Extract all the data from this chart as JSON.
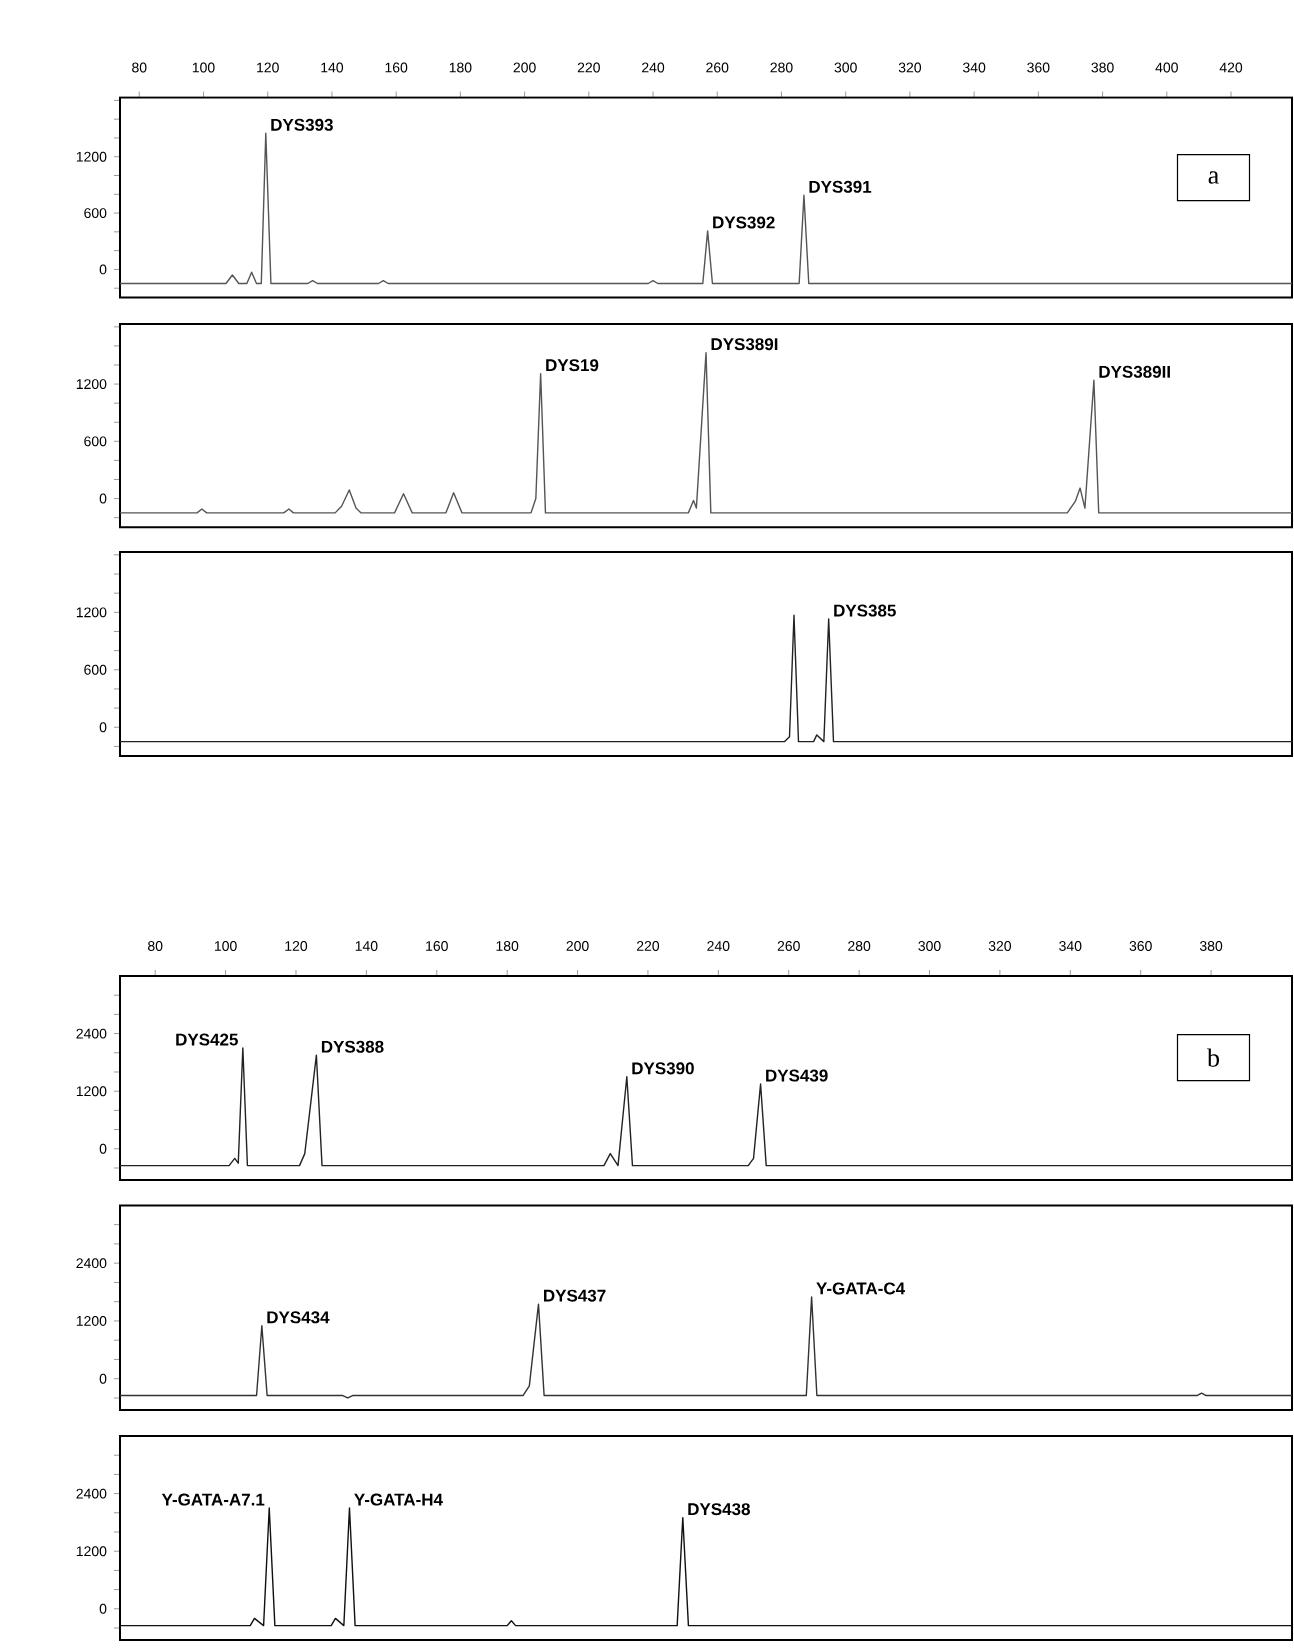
{
  "chart_data": [
    {
      "type": "line",
      "xlim": [
        74,
        439
      ],
      "ylim": [
        -300,
        1830
      ],
      "xticks": [
        80,
        100,
        120,
        140,
        160,
        180,
        200,
        220,
        240,
        260,
        280,
        300,
        320,
        340,
        360,
        380,
        400,
        420
      ],
      "yticks": [
        {
          "value": -200,
          "label": null
        },
        0,
        {
          "value": 200,
          "label": null
        },
        {
          "value": 400,
          "label": null
        },
        600,
        {
          "value": 800,
          "label": null
        },
        {
          "value": 1000,
          "label": null
        },
        1200,
        {
          "value": 1400,
          "label": null
        },
        {
          "value": 1600,
          "label": null
        },
        {
          "value": 1800,
          "label": null
        }
      ],
      "series": [
        {
          "color": "#555555",
          "x": [
            74,
            107,
            109,
            111,
            113.5,
            115,
            116.5,
            118,
            119.4,
            121,
            132.5,
            134,
            135.5,
            154.5,
            156,
            157.5,
            238.5,
            240,
            241.5,
            255.5,
            257,
            258.5,
            285.5,
            287,
            288.5,
            439
          ],
          "values": [
            -150,
            -150,
            -60,
            -150,
            -150,
            -30,
            -150,
            -150,
            1450,
            -150,
            -150,
            -120,
            -150,
            -150,
            -120,
            -150,
            -150,
            -120,
            -150,
            -150,
            410,
            -150,
            -150,
            790,
            -150,
            -150
          ]
        }
      ],
      "annotations": [
        {
          "text": "DYS393",
          "x": 119.4,
          "y": 1450
        },
        {
          "text": "DYS392",
          "x": 257,
          "y": 410
        },
        {
          "text": "DYS391",
          "x": 287,
          "y": 790
        },
        "a"
      ]
    },
    {
      "type": "line",
      "xlim": [
        74,
        439
      ],
      "ylim": [
        -300,
        1830
      ],
      "tick_labels": "y",
      "yticks": [
        {
          "value": -200,
          "label": null
        },
        0,
        {
          "value": 200,
          "label": null
        },
        {
          "value": 400,
          "label": null
        },
        600,
        {
          "value": 800,
          "label": null
        },
        {
          "value": 1000,
          "label": null
        },
        1200,
        {
          "value": 1400,
          "label": null
        },
        {
          "value": 1600,
          "label": null
        },
        {
          "value": 1800,
          "label": null
        }
      ],
      "series": [
        {
          "color": "#555555",
          "x": [
            74,
            98,
            99.5,
            101,
            125,
            126.6,
            128,
            141,
            143,
            145.4,
            147.5,
            149,
            159.5,
            162.3,
            165,
            175.5,
            177.9,
            180.5,
            202,
            203.5,
            205,
            206.5,
            251,
            252.6,
            253.5,
            256.5,
            258,
            369,
            371.5,
            373,
            374.5,
            377.3,
            378.8,
            439
          ],
          "values": [
            -150,
            -150,
            -110,
            -150,
            -150,
            -110,
            -150,
            -150,
            -80,
            90,
            -100,
            -150,
            -150,
            50,
            -150,
            -150,
            60,
            -150,
            -150,
            0,
            1310,
            -150,
            -150,
            -20,
            -100,
            1530,
            -150,
            -150,
            -30,
            110,
            -100,
            1240,
            -150,
            -150
          ]
        }
      ],
      "annotations": [
        {
          "text": "DYS19",
          "x": 205,
          "y": 1310
        },
        {
          "text": "DYS389I",
          "x": 256.5,
          "y": 1530
        },
        {
          "text": "DYS389II",
          "x": 377.3,
          "y": 1240
        }
      ]
    },
    {
      "type": "line",
      "xlim": [
        74,
        439
      ],
      "ylim": [
        -300,
        1830
      ],
      "tick_labels": "y",
      "yticks": [
        {
          "value": -200,
          "label": null
        },
        0,
        {
          "value": 200,
          "label": null
        },
        {
          "value": 400,
          "label": null
        },
        600,
        {
          "value": 800,
          "label": null
        },
        {
          "value": 1000,
          "label": null
        },
        1200,
        {
          "value": 1400,
          "label": null
        },
        {
          "value": 1600,
          "label": null
        },
        {
          "value": 1800,
          "label": null
        }
      ],
      "series": [
        {
          "color": "#222222",
          "x": [
            74,
            281,
            282.5,
            283.9,
            285.3,
            290,
            291,
            293.2,
            294.7,
            296.2,
            439
          ],
          "values": [
            -150,
            -150,
            -100,
            1170,
            -150,
            -150,
            -80,
            -150,
            1130,
            -150,
            -150
          ]
        }
      ],
      "annotations": [
        {
          "text": "DYS385",
          "x": 294.7,
          "y": 1130
        }
      ]
    },
    {
      "type": "line",
      "xlim": [
        70,
        403
      ],
      "ylim": [
        -650,
        3600
      ],
      "xticks": [
        80,
        100,
        120,
        140,
        160,
        180,
        200,
        220,
        240,
        260,
        280,
        300,
        320,
        340,
        360,
        380
      ],
      "yticks": [
        {
          "value": -400,
          "label": null
        },
        0,
        {
          "value": 400,
          "label": null
        },
        {
          "value": 800,
          "label": null
        },
        1200,
        {
          "value": 1600,
          "label": null
        },
        {
          "value": 2000,
          "label": null
        },
        2400,
        {
          "value": 2800,
          "label": null
        },
        {
          "value": 3200,
          "label": null
        }
      ],
      "series": [
        {
          "color": "#222222",
          "x": [
            70,
            101,
            102.6,
            103.6,
            104.9,
            106.2,
            121,
            122.5,
            125.8,
            127.4,
            207.5,
            209.3,
            211.5,
            214.0,
            215.6,
            248.5,
            250,
            252.0,
            253.6,
            403
          ],
          "values": [
            -350,
            -350,
            -200,
            -300,
            2100,
            -350,
            -350,
            -100,
            1950,
            -350,
            -350,
            -100,
            -350,
            1500,
            -350,
            -350,
            -200,
            1350,
            -350,
            -350
          ]
        }
      ],
      "annotations": [
        {
          "text": "DYS425",
          "x": 104.9,
          "y": 2100
        },
        {
          "text": "DYS388",
          "x": 125.8,
          "y": 1950
        },
        {
          "text": "DYS390",
          "x": 214.0,
          "y": 1500
        },
        {
          "text": "DYS439",
          "x": 252.0,
          "y": 1350
        },
        "b"
      ]
    },
    {
      "type": "line",
      "xlim": [
        70,
        403
      ],
      "ylim": [
        -650,
        3600
      ],
      "tick_labels": "y",
      "yticks": [
        {
          "value": -400,
          "label": null
        },
        0,
        {
          "value": 400,
          "label": null
        },
        {
          "value": 800,
          "label": null
        },
        1200,
        {
          "value": 1600,
          "label": null
        },
        {
          "value": 2000,
          "label": null
        },
        2400,
        {
          "value": 2800,
          "label": null
        },
        {
          "value": 3200,
          "label": null
        }
      ],
      "series": [
        {
          "color": "#333333",
          "x": [
            70,
            108.8,
            110.3,
            111.8,
            133.3,
            134.7,
            136.1,
            184.5,
            186.3,
            188.9,
            190.5,
            265,
            266.5,
            268,
            376,
            377.3,
            378.6,
            403
          ],
          "values": [
            -350,
            -350,
            1100,
            -350,
            -350,
            -400,
            -350,
            -350,
            -150,
            1550,
            -350,
            -350,
            1700,
            -350,
            -350,
            -300,
            -350,
            -350
          ]
        }
      ],
      "annotations": [
        {
          "text": "DYS434",
          "x": 110.3,
          "y": 1100
        },
        {
          "text": "DYS437",
          "x": 188.9,
          "y": 1550
        },
        {
          "text": "Y-GATA-C4",
          "x": 266.5,
          "y": 1700
        }
      ]
    },
    {
      "type": "line",
      "xlim": [
        70,
        403
      ],
      "ylim": [
        -650,
        3600
      ],
      "tick_labels": "y",
      "yticks": [
        {
          "value": -400,
          "label": null
        },
        0,
        {
          "value": 400,
          "label": null
        },
        {
          "value": 800,
          "label": null
        },
        1200,
        {
          "value": 1600,
          "label": null
        },
        {
          "value": 2000,
          "label": null
        },
        2400,
        {
          "value": 2800,
          "label": null
        },
        {
          "value": 3200,
          "label": null
        }
      ],
      "series": [
        {
          "color": "#111111",
          "x": [
            70,
            107,
            108.2,
            110.8,
            112.4,
            114,
            130,
            131.2,
            133.6,
            135.2,
            136.8,
            180,
            181.2,
            182.4,
            228.3,
            229.9,
            231.5,
            403
          ],
          "values": [
            -350,
            -350,
            -200,
            -350,
            2100,
            -350,
            -350,
            -200,
            -350,
            2100,
            -350,
            -350,
            -250,
            -350,
            -350,
            1900,
            -350,
            -350
          ]
        }
      ],
      "annotations": [
        {
          "text": "Y-GATA-A7.1",
          "x": 112.4,
          "y": 2100
        },
        {
          "text": "Y-GATA-H4",
          "x": 135.2,
          "y": 2100
        },
        {
          "text": "DYS438",
          "x": 229.9,
          "y": 1900
        }
      ]
    }
  ]
}
